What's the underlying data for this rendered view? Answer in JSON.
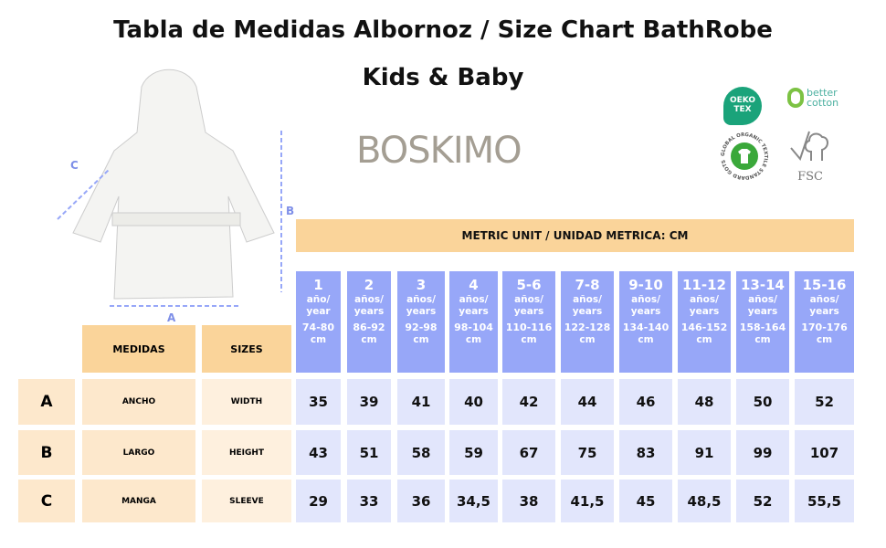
{
  "title_line1": "Tabla de Medidas Albornoz / Size Chart BathRobe",
  "title_line2": "Kids & Baby",
  "brand": "BOSKIMO",
  "logos": {
    "oekotex": "OEKO TEX",
    "bettercotton": "better cotton",
    "gots": "GLOBAL ORGANIC TEXTILE STANDARD GOTS",
    "fsc": "FSC"
  },
  "diagram_labels": {
    "a": "A",
    "b": "B",
    "c": "C"
  },
  "metric_label": "METRIC UNIT / UNIDAD METRICA: CM",
  "header": {
    "medidas": "MEDIDAS",
    "sizes": "SIZES"
  },
  "colors": {
    "header_blue": "#97a7f8",
    "cell_lavender": "#e2e6fc",
    "header_orange": "#fad49a",
    "row_beige": "#fde8cc"
  },
  "sizes": [
    {
      "n": "1",
      "u1": "año/",
      "u2": "year",
      "cm1": "74-80",
      "cm2": "cm"
    },
    {
      "n": "2",
      "u1": "años/",
      "u2": "years",
      "cm1": "86-92",
      "cm2": "cm"
    },
    {
      "n": "3",
      "u1": "años/",
      "u2": "years",
      "cm1": "92-98",
      "cm2": "cm"
    },
    {
      "n": "4",
      "u1": "años/",
      "u2": "years",
      "cm1": "98-104",
      "cm2": "cm"
    },
    {
      "n": "5-6",
      "u1": "años/",
      "u2": "years",
      "cm1": "110-116",
      "cm2": "cm"
    },
    {
      "n": "7-8",
      "u1": "años/",
      "u2": "years",
      "cm1": "122-128",
      "cm2": "cm"
    },
    {
      "n": "9-10",
      "u1": "años/",
      "u2": "years",
      "cm1": "134-140",
      "cm2": "cm"
    },
    {
      "n": "11-12",
      "u1": "años/",
      "u2": "years",
      "cm1": "146-152",
      "cm2": "cm"
    },
    {
      "n": "13-14",
      "u1": "años/",
      "u2": "years",
      "cm1": "158-164",
      "cm2": "cm"
    },
    {
      "n": "15-16",
      "u1": "años/",
      "u2": "years",
      "cm1": "170-176",
      "cm2": "cm"
    }
  ],
  "rows": [
    {
      "letter": "A",
      "es": "ANCHO",
      "en": "WIDTH",
      "values": [
        "35",
        "39",
        "41",
        "40",
        "42",
        "44",
        "46",
        "48",
        "50",
        "52"
      ]
    },
    {
      "letter": "B",
      "es": "LARGO",
      "en": "HEIGHT",
      "values": [
        "43",
        "51",
        "58",
        "59",
        "67",
        "75",
        "83",
        "91",
        "99",
        "107"
      ]
    },
    {
      "letter": "C",
      "es": "MANGA",
      "en": "SLEEVE",
      "values": [
        "29",
        "33",
        "36",
        "34,5",
        "38",
        "41,5",
        "45",
        "48,5",
        "52",
        "55,5"
      ]
    }
  ]
}
